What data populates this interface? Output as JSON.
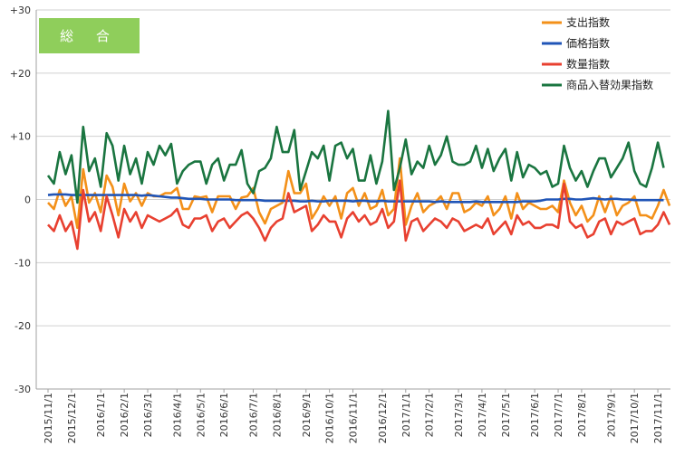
{
  "badge": {
    "text": "総 合",
    "color": "#8fce5b"
  },
  "chart_data": {
    "type": "line",
    "title": "",
    "xlabel": "",
    "ylabel": "",
    "ylim": [
      -30,
      30
    ],
    "yticks": [
      "+30",
      "+20",
      "+10",
      "0",
      "-10",
      "-20",
      "-30"
    ],
    "ytick_values": [
      30,
      20,
      10,
      0,
      -10,
      -20,
      -30
    ],
    "x_tick_labels": [
      "2015/11/1",
      "2015/12/1",
      "2016/1/1",
      "2016/2/1",
      "2016/3/1",
      "2016/4/1",
      "2016/5/1",
      "2016/6/1",
      "2016/7/1",
      "2016/8/1",
      "2016/9/1",
      "2016/10/1",
      "2016/11/1",
      "2016/12/1",
      "2017/1/1",
      "2017/2/1",
      "2017/3/1",
      "2017/4/1",
      "2017/5/1",
      "2017/6/1",
      "2017/7/1",
      "2017/8/1",
      "2017/9/1",
      "2017/10/1",
      "2017/11/1"
    ],
    "x_tick_week_index": [
      0,
      4,
      9,
      13,
      17,
      22,
      26,
      30,
      35,
      39,
      44,
      48,
      52,
      57,
      61,
      65,
      70,
      74,
      78,
      83,
      87,
      91,
      96,
      100,
      104
    ],
    "grid": true,
    "legend_position": "top-right",
    "series": [
      {
        "name": "支出指数",
        "color": "#f39019",
        "values": [
          -0.5,
          -1.5,
          1.5,
          -1.0,
          0.5,
          -4.5,
          4.8,
          -0.5,
          1.0,
          -2.0,
          3.8,
          2.0,
          -2.5,
          2.5,
          -0.3,
          1.0,
          -1.0,
          1.0,
          0.5,
          0.5,
          1.0,
          1.0,
          1.8,
          -1.5,
          -1.5,
          0.5,
          0.3,
          0.5,
          -2.0,
          0.5,
          0.5,
          0.5,
          -1.5,
          0.3,
          0.5,
          1.8,
          -2.0,
          -3.8,
          -1.5,
          -1.0,
          -0.5,
          4.5,
          1.0,
          1.0,
          2.5,
          -3.0,
          -1.5,
          0.5,
          -1.0,
          0.5,
          -3.0,
          1.0,
          1.8,
          -1.0,
          1.0,
          -1.5,
          -1.0,
          1.5,
          -2.5,
          -1.5,
          6.5,
          -4.0,
          -1.0,
          1.0,
          -2.0,
          -1.0,
          -0.5,
          0.5,
          -1.5,
          1.0,
          1.0,
          -2.0,
          -1.5,
          -0.5,
          -1.0,
          0.5,
          -2.5,
          -1.5,
          0.5,
          -3.0,
          1.0,
          -1.5,
          -0.5,
          -1.0,
          -1.5,
          -1.5,
          -1.0,
          -2.0,
          3.0,
          -0.5,
          -2.5,
          -1.0,
          -3.5,
          -2.5,
          0.5,
          -2.0,
          0.5,
          -2.5,
          -1.0,
          -0.5,
          0.5,
          -2.5,
          -2.5,
          -3.0,
          -1.0,
          1.5,
          -1.0
        ]
      },
      {
        "name": "価格指数",
        "color": "#2055b7",
        "values": [
          0.7,
          0.8,
          0.8,
          0.8,
          0.7,
          0.7,
          0.7,
          0.7,
          0.7,
          0.7,
          0.7,
          0.7,
          0.7,
          0.7,
          0.7,
          0.7,
          0.6,
          0.7,
          0.6,
          0.5,
          0.4,
          0.3,
          0.3,
          0.2,
          0.1,
          0.1,
          0.1,
          0.0,
          0.0,
          0.0,
          0.0,
          0.0,
          -0.1,
          -0.1,
          -0.1,
          -0.1,
          -0.1,
          -0.2,
          -0.2,
          -0.2,
          -0.2,
          -0.2,
          -0.2,
          -0.3,
          -0.3,
          -0.2,
          -0.3,
          -0.3,
          -0.2,
          -0.2,
          -0.2,
          -0.2,
          -0.3,
          -0.2,
          -0.2,
          -0.3,
          -0.3,
          -0.2,
          -0.3,
          -0.3,
          -0.3,
          -0.3,
          -0.3,
          -0.3,
          -0.3,
          -0.3,
          -0.4,
          -0.3,
          -0.4,
          -0.4,
          -0.4,
          -0.4,
          -0.4,
          -0.3,
          -0.4,
          -0.4,
          -0.4,
          -0.4,
          -0.4,
          -0.4,
          -0.4,
          -0.3,
          -0.3,
          -0.3,
          -0.2,
          0.0,
          0.0,
          0.0,
          0.1,
          0.1,
          0.0,
          0.0,
          0.1,
          0.2,
          0.1,
          0.0,
          0.1,
          0.1,
          0.0,
          0.0,
          -0.1,
          -0.1,
          -0.1,
          -0.1,
          -0.1,
          -0.1
        ]
      },
      {
        "name": "数量指数",
        "color": "#e84030",
        "values": [
          -4.0,
          -5.0,
          -2.5,
          -5.0,
          -3.5,
          -7.8,
          1.5,
          -3.5,
          -2.0,
          -5.0,
          0.5,
          -2.5,
          -6.0,
          -1.5,
          -3.5,
          -2.0,
          -4.5,
          -2.5,
          -3.0,
          -3.5,
          -3.0,
          -2.5,
          -1.5,
          -4.0,
          -4.5,
          -3.0,
          -3.0,
          -2.5,
          -5.0,
          -3.5,
          -3.0,
          -4.5,
          -3.5,
          -2.5,
          -2.0,
          -3.0,
          -4.5,
          -6.5,
          -4.5,
          -3.5,
          -3.0,
          1.0,
          -2.0,
          -1.5,
          -1.0,
          -5.0,
          -4.0,
          -2.5,
          -3.5,
          -3.5,
          -6.0,
          -3.0,
          -2.0,
          -3.5,
          -2.5,
          -4.0,
          -3.5,
          -1.5,
          -4.5,
          -3.5,
          3.0,
          -6.5,
          -3.5,
          -3.0,
          -5.0,
          -4.0,
          -3.0,
          -3.5,
          -4.5,
          -3.0,
          -3.5,
          -5.0,
          -4.5,
          -4.0,
          -4.5,
          -3.0,
          -5.5,
          -4.5,
          -3.5,
          -5.5,
          -2.5,
          -4.0,
          -3.5,
          -4.5,
          -4.5,
          -4.0,
          -4.0,
          -4.5,
          2.5,
          -3.5,
          -4.5,
          -4.0,
          -6.0,
          -5.5,
          -3.5,
          -3.0,
          -5.5,
          -3.5,
          -4.0,
          -3.5,
          -3.0,
          -5.5,
          -5.0,
          -5.0,
          -4.0,
          -2.0,
          -4.0
        ]
      },
      {
        "name": "商品入替効果指数",
        "color": "#1a7540",
        "values": [
          3.8,
          2.5,
          7.5,
          4.0,
          7.0,
          -0.5,
          11.5,
          4.5,
          6.5,
          2.0,
          10.5,
          8.5,
          3.0,
          8.5,
          4.0,
          6.5,
          2.5,
          7.5,
          5.5,
          8.5,
          7.0,
          8.8,
          2.5,
          4.5,
          5.5,
          6.0,
          6.0,
          2.5,
          5.5,
          6.5,
          3.0,
          5.5,
          5.5,
          7.8,
          2.5,
          1.0,
          4.5,
          5.0,
          6.5,
          11.5,
          7.5,
          7.5,
          11.0,
          1.5,
          4.5,
          7.5,
          6.5,
          8.5,
          3.0,
          8.5,
          9.0,
          6.5,
          8.0,
          3.0,
          3.0,
          7.0,
          2.5,
          6.0,
          14.0,
          1.5,
          5.0,
          9.5,
          4.0,
          6.0,
          5.0,
          8.5,
          5.5,
          7.0,
          10.0,
          6.0,
          5.5,
          5.5,
          6.0,
          8.5,
          5.0,
          8.0,
          4.5,
          6.5,
          8.0,
          3.0,
          7.5,
          3.5,
          5.5,
          5.0,
          4.0,
          4.5,
          2.0,
          2.5,
          8.5,
          5.0,
          3.0,
          4.5,
          2.0,
          4.5,
          6.5,
          6.5,
          3.5,
          5.0,
          6.5,
          9.0,
          4.5,
          2.5,
          2.0,
          5.0,
          9.0,
          5.0
        ]
      }
    ]
  }
}
